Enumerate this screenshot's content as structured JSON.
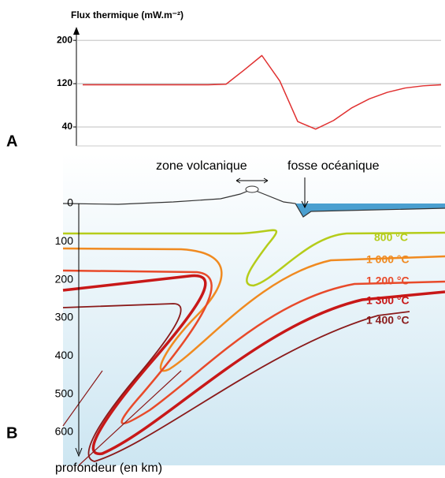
{
  "chart_data": {
    "type": "line",
    "title": "Flux thermique (mW.m⁻²)",
    "panel_label": "A",
    "categories": [
      null,
      null,
      null,
      null,
      null,
      null,
      null,
      null,
      null,
      null,
      null,
      null,
      null,
      null,
      null,
      null,
      null,
      null,
      null,
      null,
      null
    ],
    "values": [
      118,
      118,
      118,
      118,
      118,
      118,
      118,
      118,
      119,
      145,
      172,
      125,
      50,
      36,
      52,
      75,
      92,
      104,
      112,
      116,
      118
    ],
    "color": "#e03030",
    "ylim": [
      5,
      225
    ],
    "yticks": [
      40,
      120,
      200
    ],
    "grid": true
  },
  "diagram": {
    "panel_label": "B",
    "axis_label": "profondeur (en km)",
    "depth_ticks": [
      0,
      100,
      200,
      300,
      400,
      500,
      600
    ],
    "annotations": [
      "zone volcanique",
      "fosse océanique"
    ],
    "isotherms": [
      "800 °C",
      "1 000 °C",
      "1 200 °C",
      "1 300 °C",
      "1 400 °C"
    ]
  }
}
